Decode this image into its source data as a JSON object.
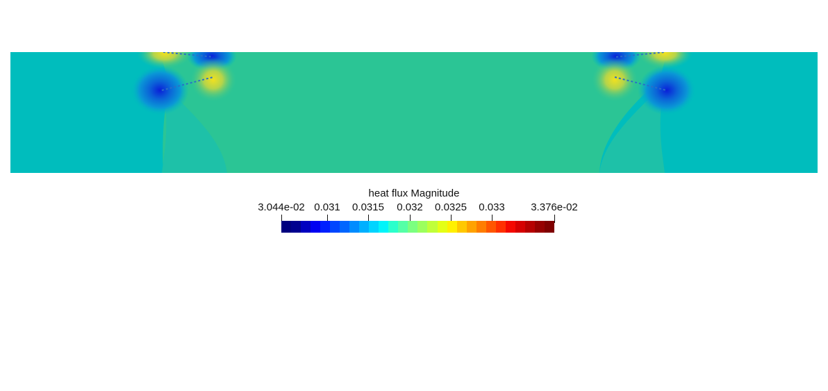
{
  "scalar_bar": {
    "title": "heat flux Magnitude",
    "range": [
      0.03044,
      0.03376
    ],
    "ticks": [
      {
        "label": "3.044e-02",
        "value": 0.03044
      },
      {
        "label": "0.031",
        "value": 0.031
      },
      {
        "label": "0.0315",
        "value": 0.0315
      },
      {
        "label": "0.032",
        "value": 0.032
      },
      {
        "label": "0.0325",
        "value": 0.0325
      },
      {
        "label": "0.033",
        "value": 0.033
      },
      {
        "label": "3.376e-02",
        "value": 0.03376
      }
    ],
    "colormap": [
      "#00007f",
      "#00008f",
      "#0000c0",
      "#0000f2",
      "#0020ff",
      "#0046ff",
      "#0066ff",
      "#008cff",
      "#00b0ff",
      "#00d4ff",
      "#00f4fa",
      "#2bffcc",
      "#55ffa7",
      "#7bff80",
      "#9cff5e",
      "#c0ff3a",
      "#e4ff16",
      "#fff000",
      "#ffc800",
      "#ffa200",
      "#ff7d00",
      "#ff5600",
      "#ff3000",
      "#f40800",
      "#d60000",
      "#b60000",
      "#960000",
      "#7f0000"
    ]
  },
  "field_colors": {
    "background": "#00bdbd",
    "center_band": "#2bc595",
    "low": "#0b62d8",
    "low_mid": "#0a97d6",
    "high": "#d8d12a",
    "high_mid": "#7fcf6a",
    "hot": "#f0e020"
  }
}
